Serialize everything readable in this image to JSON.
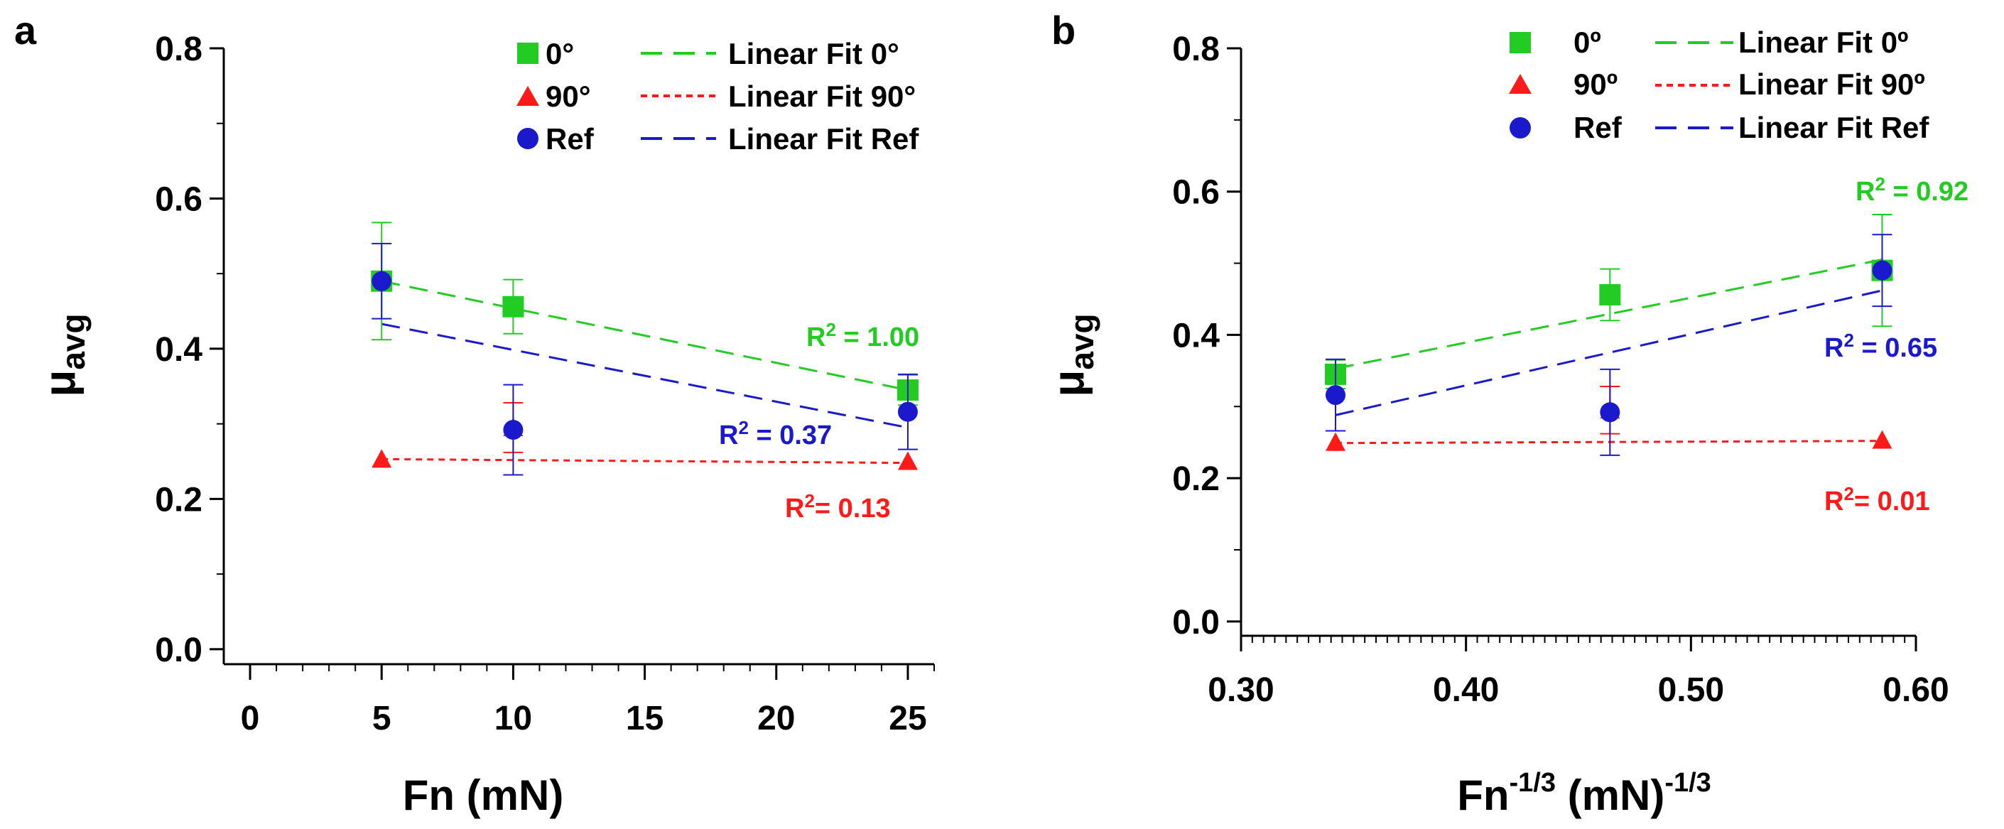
{
  "panels": [
    {
      "label": "a",
      "chart_data": {
        "type": "scatter",
        "xlabel": "Fn (mN)",
        "ylabel_main": "μ",
        "ylabel_sub": "avg",
        "xlim": [
          -1,
          26
        ],
        "ylim": [
          -0.02,
          0.8
        ],
        "x_ticks": [
          0,
          5,
          10,
          15,
          20,
          25
        ],
        "x_tick_labels": [
          "0",
          "5",
          "10",
          "15",
          "20",
          "25"
        ],
        "x_minor_step": 1,
        "y_ticks": [
          0.0,
          0.2,
          0.4,
          0.6,
          0.8
        ],
        "y_tick_labels": [
          "0.0",
          "0.2",
          "0.4",
          "0.6",
          "0.8"
        ],
        "y_minor_step": 0.1,
        "legend": [
          {
            "name": "0°",
            "fit_name": "Linear Fit 0°"
          },
          {
            "name": "90°",
            "fit_name": "Linear Fit 90°"
          },
          {
            "name": "Ref",
            "fit_name": "Linear Fit Ref"
          }
        ],
        "series": [
          {
            "name": "0°",
            "marker": "square",
            "color": "#22cc22",
            "fit_style": "dashed",
            "x": [
              5,
              10,
              25
            ],
            "y": [
              0.49,
              0.456,
              0.345
            ],
            "err": [
              0.078,
              0.036,
              0.02
            ],
            "fit": [
              0.49,
              0.345
            ],
            "r2": "1.00"
          },
          {
            "name": "90°",
            "marker": "triangle",
            "color": "#ff1a1a",
            "fit_style": "dotted",
            "x": [
              5,
              10,
              25
            ],
            "y": [
              0.253,
              0.295,
              0.25
            ],
            "err": [
              0.0,
              0.033,
              0.0
            ],
            "fit": [
              0.253,
              0.248
            ],
            "r2": "0.13"
          },
          {
            "name": "Ref",
            "marker": "circle",
            "color": "#1a1acc",
            "fit_style": "dashed",
            "x": [
              5,
              10,
              25
            ],
            "y": [
              0.49,
              0.292,
              0.316
            ],
            "err": [
              0.05,
              0.06,
              0.05
            ],
            "fit": [
              0.433,
              0.295
            ],
            "r2": "0.37"
          }
        ]
      }
    },
    {
      "label": "b",
      "chart_data": {
        "type": "scatter",
        "xlabel_main": "Fn",
        "xlabel_sup1": "-1/3",
        "xlabel_mid": " (mN)",
        "xlabel_sup2": "-1/3",
        "ylabel_main": "μ",
        "ylabel_sub": "avg",
        "xlim": [
          0.3,
          0.6
        ],
        "ylim": [
          -0.02,
          0.8
        ],
        "x_ticks": [
          0.3,
          0.4,
          0.5,
          0.6
        ],
        "x_tick_labels": [
          "0.30",
          "0.40",
          "0.50",
          "0.60"
        ],
        "x_minor_step": 0.005,
        "y_ticks": [
          0.0,
          0.2,
          0.4,
          0.6,
          0.8
        ],
        "y_tick_labels": [
          "0.0",
          "0.2",
          "0.4",
          "0.6",
          "0.8"
        ],
        "y_minor_step": 0.1,
        "legend": [
          {
            "name": "0º",
            "fit_name": "Linear Fit 0º"
          },
          {
            "name": "90º",
            "fit_name": "Linear Fit 90º"
          },
          {
            "name": "Ref",
            "fit_name": "Linear Fit Ref"
          }
        ],
        "series": [
          {
            "name": "0º",
            "marker": "square",
            "color": "#22cc22",
            "fit_style": "dashed",
            "x": [
              0.342,
              0.464,
              0.585
            ],
            "y": [
              0.345,
              0.456,
              0.49
            ],
            "err": [
              0.02,
              0.036,
              0.078
            ],
            "fit": [
              0.353,
              0.505
            ],
            "r2": "0.92"
          },
          {
            "name": "90º",
            "marker": "triangle",
            "color": "#ff1a1a",
            "fit_style": "dotted",
            "x": [
              0.342,
              0.464,
              0.585
            ],
            "y": [
              0.25,
              0.295,
              0.253
            ],
            "err": [
              0.0,
              0.033,
              0.0
            ],
            "fit": [
              0.249,
              0.252
            ],
            "r2": "0.01"
          },
          {
            "name": "Ref",
            "marker": "circle",
            "color": "#1a1acc",
            "fit_style": "dashed",
            "x": [
              0.342,
              0.464,
              0.585
            ],
            "y": [
              0.316,
              0.292,
              0.49
            ],
            "err": [
              0.05,
              0.06,
              0.05
            ],
            "fit": [
              0.288,
              0.462
            ],
            "r2": "0.65"
          }
        ]
      }
    }
  ]
}
